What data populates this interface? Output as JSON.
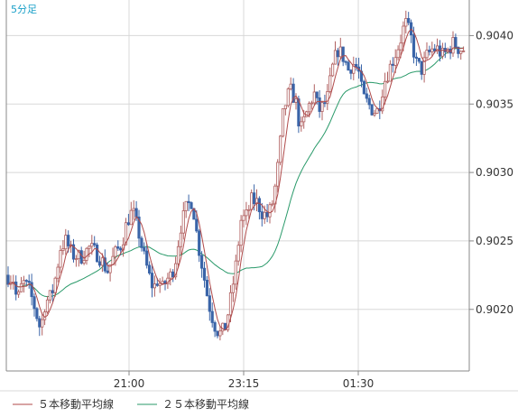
{
  "timeframe_label": "5分足",
  "colors": {
    "up_candle": "#b06060",
    "down_candle": "#3a64a8",
    "ma5": "#b04a4a",
    "ma25": "#2a9a6a",
    "grid": "#d8d8d8",
    "axis": "#888888",
    "background": "#ffffff"
  },
  "legend": [
    {
      "label": "５本移動平均線",
      "color": "#b04a4a"
    },
    {
      "label": "２５本移動平均線",
      "color": "#2a9a6a"
    }
  ],
  "chart_data": {
    "type": "candlestick",
    "title": "",
    "ylim": [
      0.90155,
      0.90426
    ],
    "y_ticks": [
      "0.9040",
      "0.9035",
      "0.9030",
      "0.9025",
      "0.9020"
    ],
    "x_tick_labels": [
      "21:00",
      "23:15",
      "01:30"
    ],
    "grid": true,
    "legend_position": "bottom-left",
    "series": [
      {
        "name": "５本移動平均線",
        "kind": "moving-average"
      },
      {
        "name": "２５本移動平均線",
        "kind": "moving-average"
      }
    ],
    "price_path": [
      [
        0,
        0.90225
      ],
      [
        8,
        0.90222
      ],
      [
        12,
        0.90205
      ],
      [
        18,
        0.9022
      ],
      [
        25,
        0.90215
      ],
      [
        32,
        0.902
      ],
      [
        38,
        0.90185
      ],
      [
        43,
        0.90205
      ],
      [
        50,
        0.9021
      ],
      [
        55,
        0.90225
      ],
      [
        60,
        0.90245
      ],
      [
        66,
        0.9025
      ],
      [
        73,
        0.9024
      ],
      [
        82,
        0.90238
      ],
      [
        92,
        0.90245
      ],
      [
        102,
        0.9024
      ],
      [
        112,
        0.90228
      ],
      [
        120,
        0.9024
      ],
      [
        128,
        0.90248
      ],
      [
        134,
        0.90265
      ],
      [
        140,
        0.90272
      ],
      [
        147,
        0.90255
      ],
      [
        152,
        0.9024
      ],
      [
        158,
        0.90225
      ],
      [
        163,
        0.90215
      ],
      [
        168,
        0.90222
      ],
      [
        173,
        0.90215
      ],
      [
        178,
        0.90222
      ],
      [
        183,
        0.90225
      ],
      [
        188,
        0.90238
      ],
      [
        193,
        0.9026
      ],
      [
        200,
        0.90275
      ],
      [
        206,
        0.9028
      ],
      [
        212,
        0.9025
      ],
      [
        218,
        0.90228
      ],
      [
        224,
        0.90205
      ],
      [
        230,
        0.9019
      ],
      [
        236,
        0.90182
      ],
      [
        242,
        0.90185
      ],
      [
        248,
        0.90205
      ],
      [
        254,
        0.9023
      ],
      [
        260,
        0.90265
      ],
      [
        266,
        0.90268
      ],
      [
        272,
        0.9028
      ],
      [
        278,
        0.90278
      ],
      [
        284,
        0.9027
      ],
      [
        290,
        0.90268
      ],
      [
        296,
        0.9028
      ],
      [
        302,
        0.9031
      ],
      [
        306,
        0.9034
      ],
      [
        311,
        0.90355
      ],
      [
        316,
        0.9036
      ],
      [
        321,
        0.9035
      ],
      [
        326,
        0.9033
      ],
      [
        331,
        0.9034
      ],
      [
        336,
        0.9035
      ],
      [
        341,
        0.90358
      ],
      [
        346,
        0.90345
      ],
      [
        351,
        0.90348
      ],
      [
        356,
        0.90355
      ],
      [
        361,
        0.90375
      ],
      [
        367,
        0.9039
      ],
      [
        373,
        0.90385
      ],
      [
        379,
        0.90375
      ],
      [
        384,
        0.9038
      ],
      [
        390,
        0.90375
      ],
      [
        395,
        0.90355
      ],
      [
        401,
        0.9035
      ],
      [
        407,
        0.90345
      ],
      [
        412,
        0.90345
      ],
      [
        418,
        0.90365
      ],
      [
        424,
        0.90375
      ],
      [
        430,
        0.90385
      ],
      [
        436,
        0.90395
      ],
      [
        442,
        0.9041
      ],
      [
        448,
        0.904
      ],
      [
        454,
        0.9038
      ],
      [
        460,
        0.90375
      ],
      [
        466,
        0.90385
      ],
      [
        472,
        0.9039
      ],
      [
        478,
        0.9039
      ],
      [
        484,
        0.90385
      ],
      [
        490,
        0.9039
      ],
      [
        496,
        0.90395
      ],
      [
        502,
        0.9039
      ],
      [
        508,
        0.9039
      ],
      [
        514,
        0.904
      ],
      [
        519,
        0.9041
      ]
    ]
  }
}
